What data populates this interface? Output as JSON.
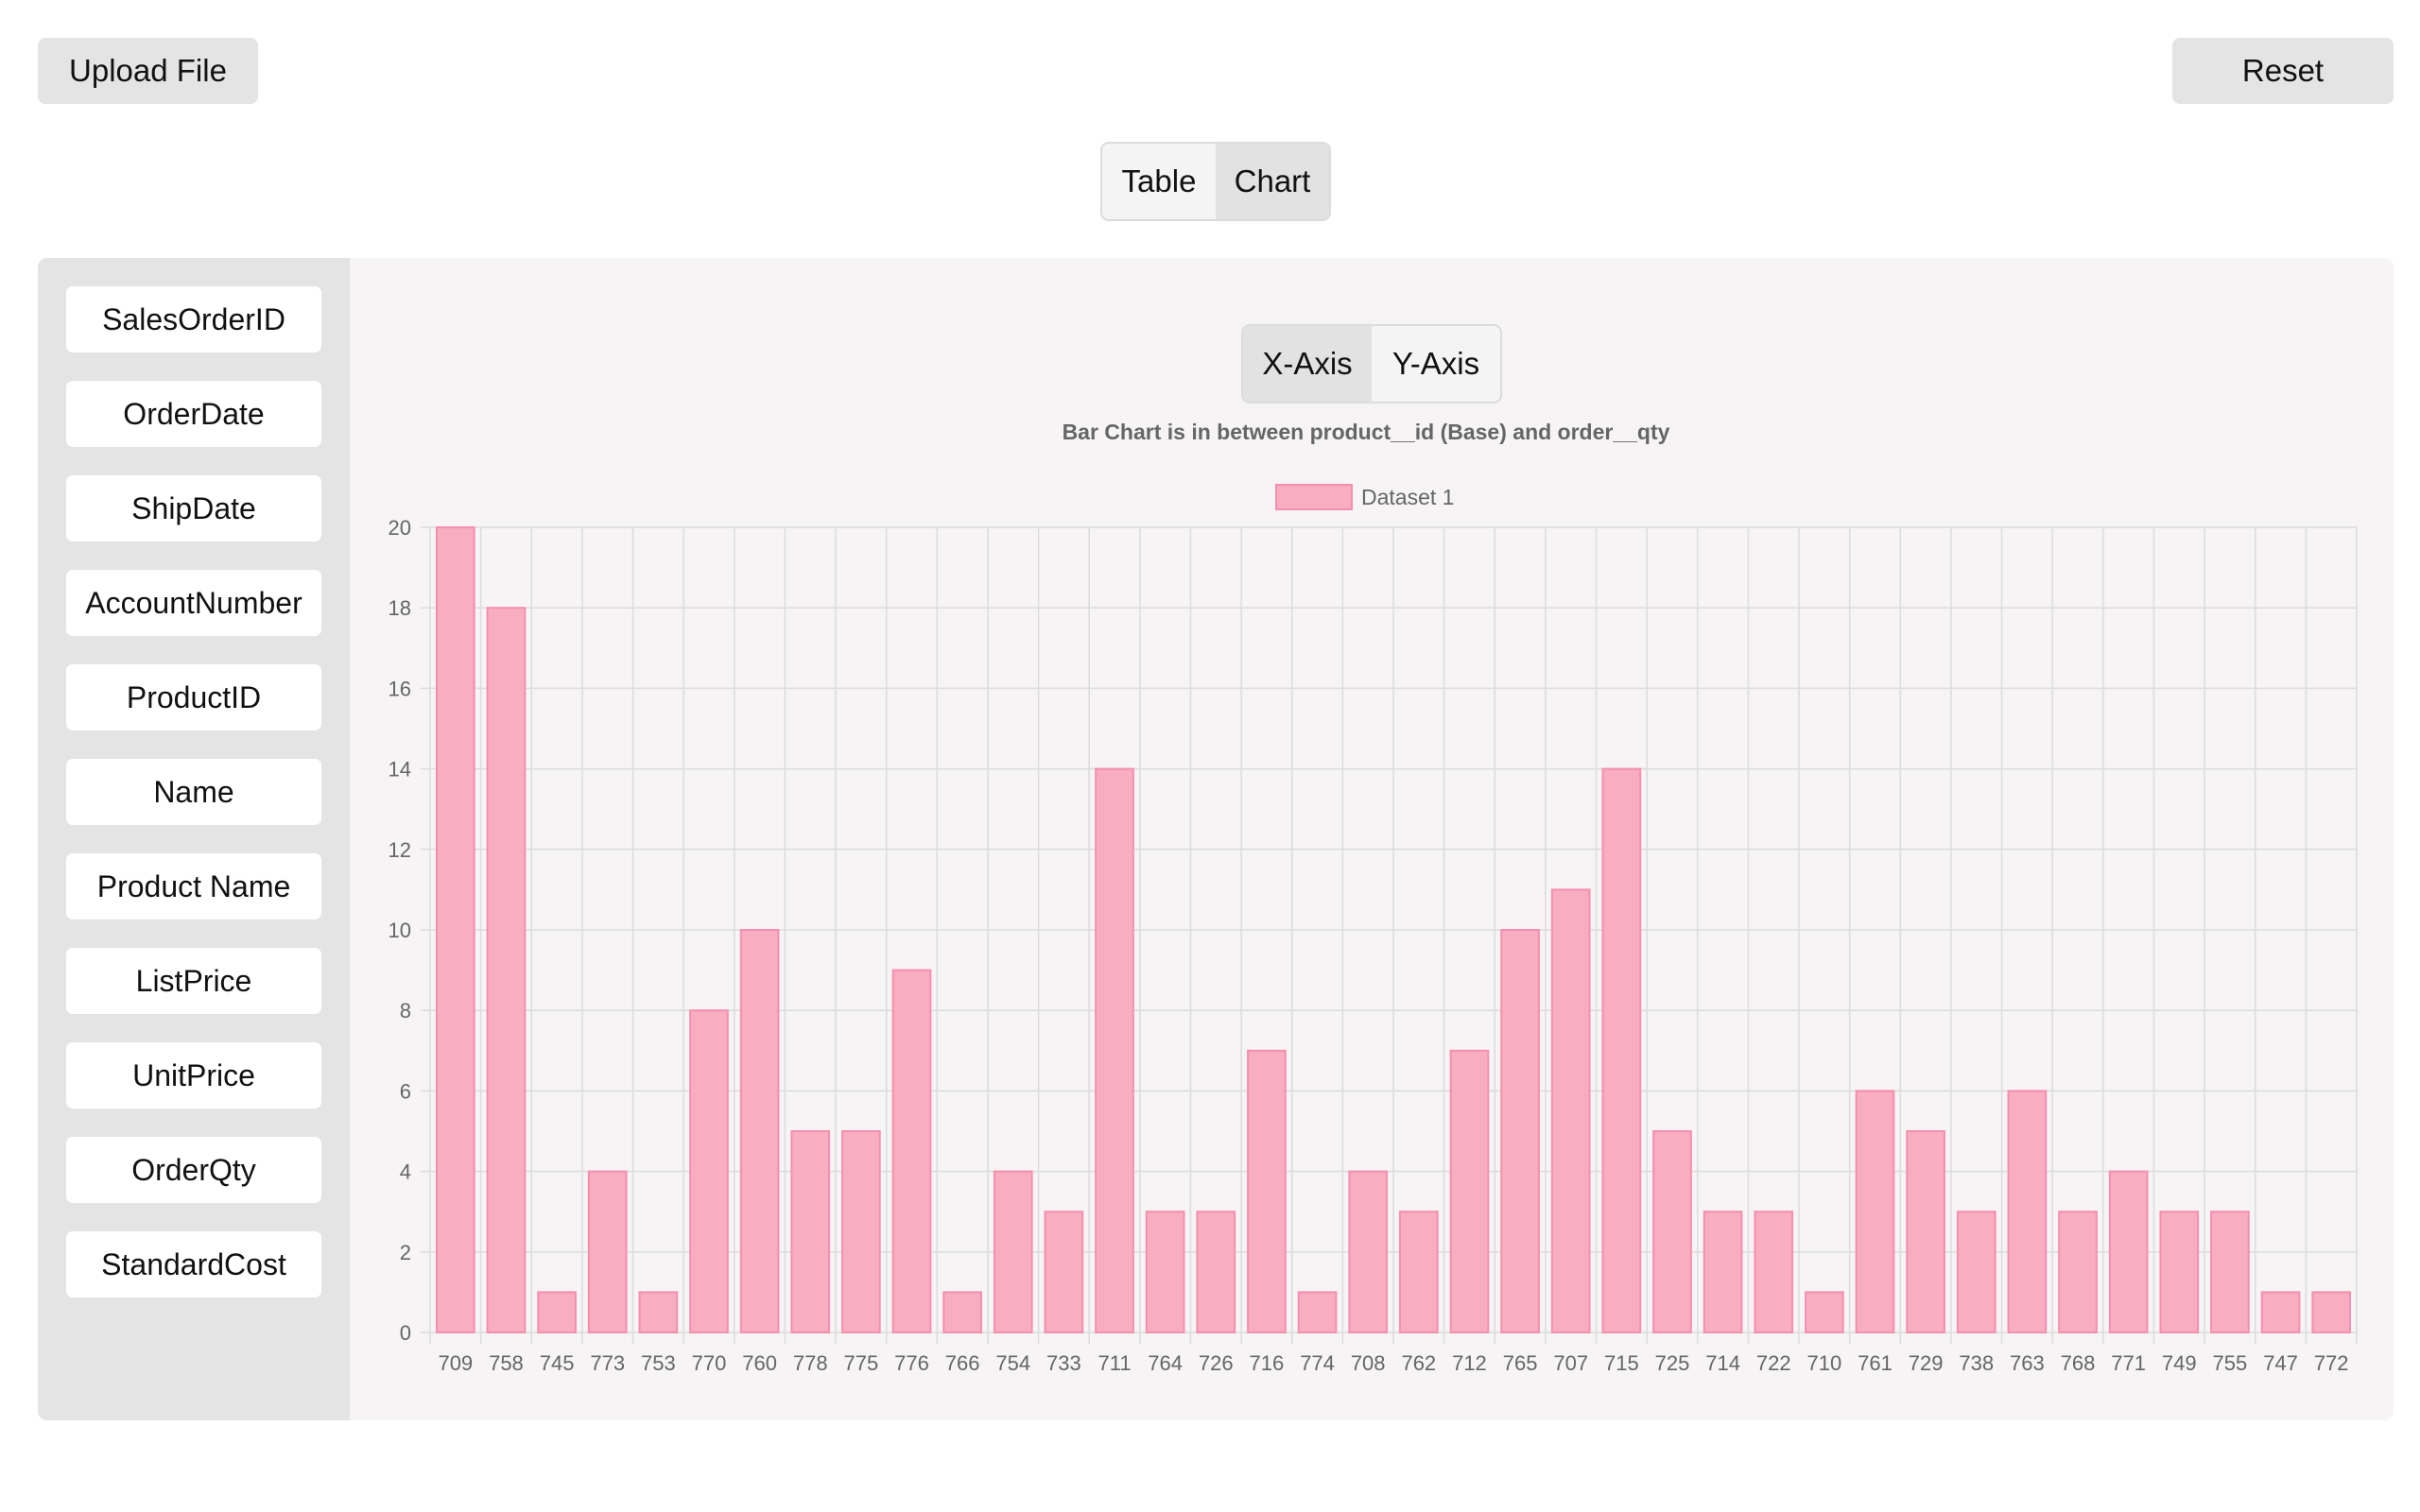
{
  "toolbar": {
    "upload_label": "Upload File",
    "reset_label": "Reset"
  },
  "view_toggle": {
    "table_label": "Table",
    "chart_label": "Chart",
    "active": "chart"
  },
  "axis_toggle": {
    "x_label": "X-Axis",
    "y_label": "Y-Axis",
    "active": "x"
  },
  "sidebar": {
    "fields": [
      "SalesOrderID",
      "OrderDate",
      "ShipDate",
      "AccountNumber",
      "ProductID",
      "Name",
      "Product Name",
      "ListPrice",
      "UnitPrice",
      "OrderQty",
      "StandardCost"
    ]
  },
  "colors": {
    "bar_fill": "#f9adc0",
    "bar_border": "#f48fb0",
    "grid": "#dcdcdc"
  },
  "chart_data": {
    "type": "bar",
    "title": "Bar Chart is in between product__id (Base) and order__qty",
    "legend_position": "top",
    "grid": true,
    "ylim": [
      0,
      20
    ],
    "yticks": [
      0,
      2,
      4,
      6,
      8,
      10,
      12,
      14,
      16,
      18,
      20
    ],
    "categories": [
      "709",
      "758",
      "745",
      "773",
      "753",
      "770",
      "760",
      "778",
      "775",
      "776",
      "766",
      "754",
      "733",
      "711",
      "764",
      "726",
      "716",
      "774",
      "708",
      "762",
      "712",
      "765",
      "707",
      "715",
      "725",
      "714",
      "722",
      "710",
      "761",
      "729",
      "738",
      "763",
      "768",
      "771",
      "749",
      "755",
      "747",
      "772"
    ],
    "series": [
      {
        "name": "Dataset 1",
        "values": [
          20,
          18,
          1,
          4,
          1,
          8,
          10,
          5,
          5,
          9,
          1,
          4,
          3,
          14,
          3,
          3,
          7,
          1,
          4,
          3,
          7,
          10,
          11,
          14,
          5,
          3,
          3,
          1,
          6,
          5,
          3,
          6,
          3,
          4,
          3,
          3,
          1,
          1
        ]
      }
    ]
  }
}
